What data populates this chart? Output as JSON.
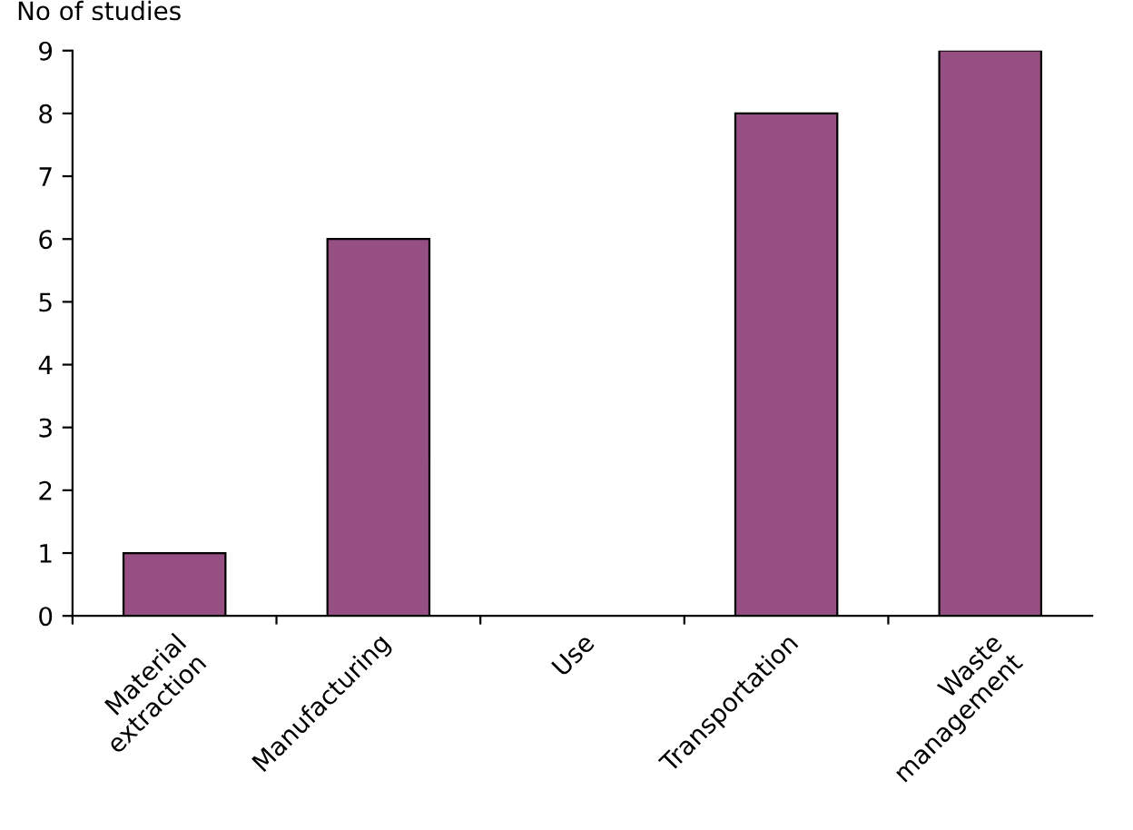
{
  "chart_data": {
    "type": "bar",
    "ylabel": "No of studies",
    "categories": [
      "Material\nextraction",
      "Manufacturing",
      "Use",
      "Transportation",
      "Waste\nmanagement"
    ],
    "values": [
      1,
      6,
      0,
      8,
      9
    ],
    "color": "#954f82",
    "ylim": [
      0,
      9
    ],
    "yticks": [
      0,
      1,
      2,
      3,
      4,
      5,
      6,
      7,
      8,
      9
    ],
    "grid": false,
    "legend": false
  }
}
